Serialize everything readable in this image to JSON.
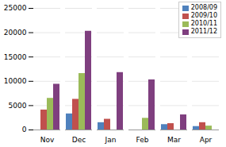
{
  "chart_data": {
    "type": "bar",
    "categories": [
      "Nov",
      "Dec",
      "Jan",
      "Feb",
      "Mar",
      "Apr"
    ],
    "series": [
      {
        "name": "2008/09",
        "color": "#4f81bd",
        "values": [
          0,
          3300,
          1500,
          0,
          1100,
          700
        ]
      },
      {
        "name": "2009/10",
        "color": "#c0504d",
        "values": [
          4100,
          6300,
          2200,
          0,
          1300,
          1500
        ]
      },
      {
        "name": "2010/11",
        "color": "#9bbb59",
        "values": [
          6500,
          11600,
          0,
          2400,
          0,
          800
        ]
      },
      {
        "name": "2011/12",
        "color": "#7f3f7f",
        "values": [
          9400,
          20300,
          11800,
          10300,
          3100,
          0
        ]
      }
    ],
    "ylim": [
      0,
      25000
    ],
    "yticks": [
      0,
      5000,
      10000,
      15000,
      20000,
      25000
    ],
    "grid": true,
    "legend": "upper right"
  }
}
